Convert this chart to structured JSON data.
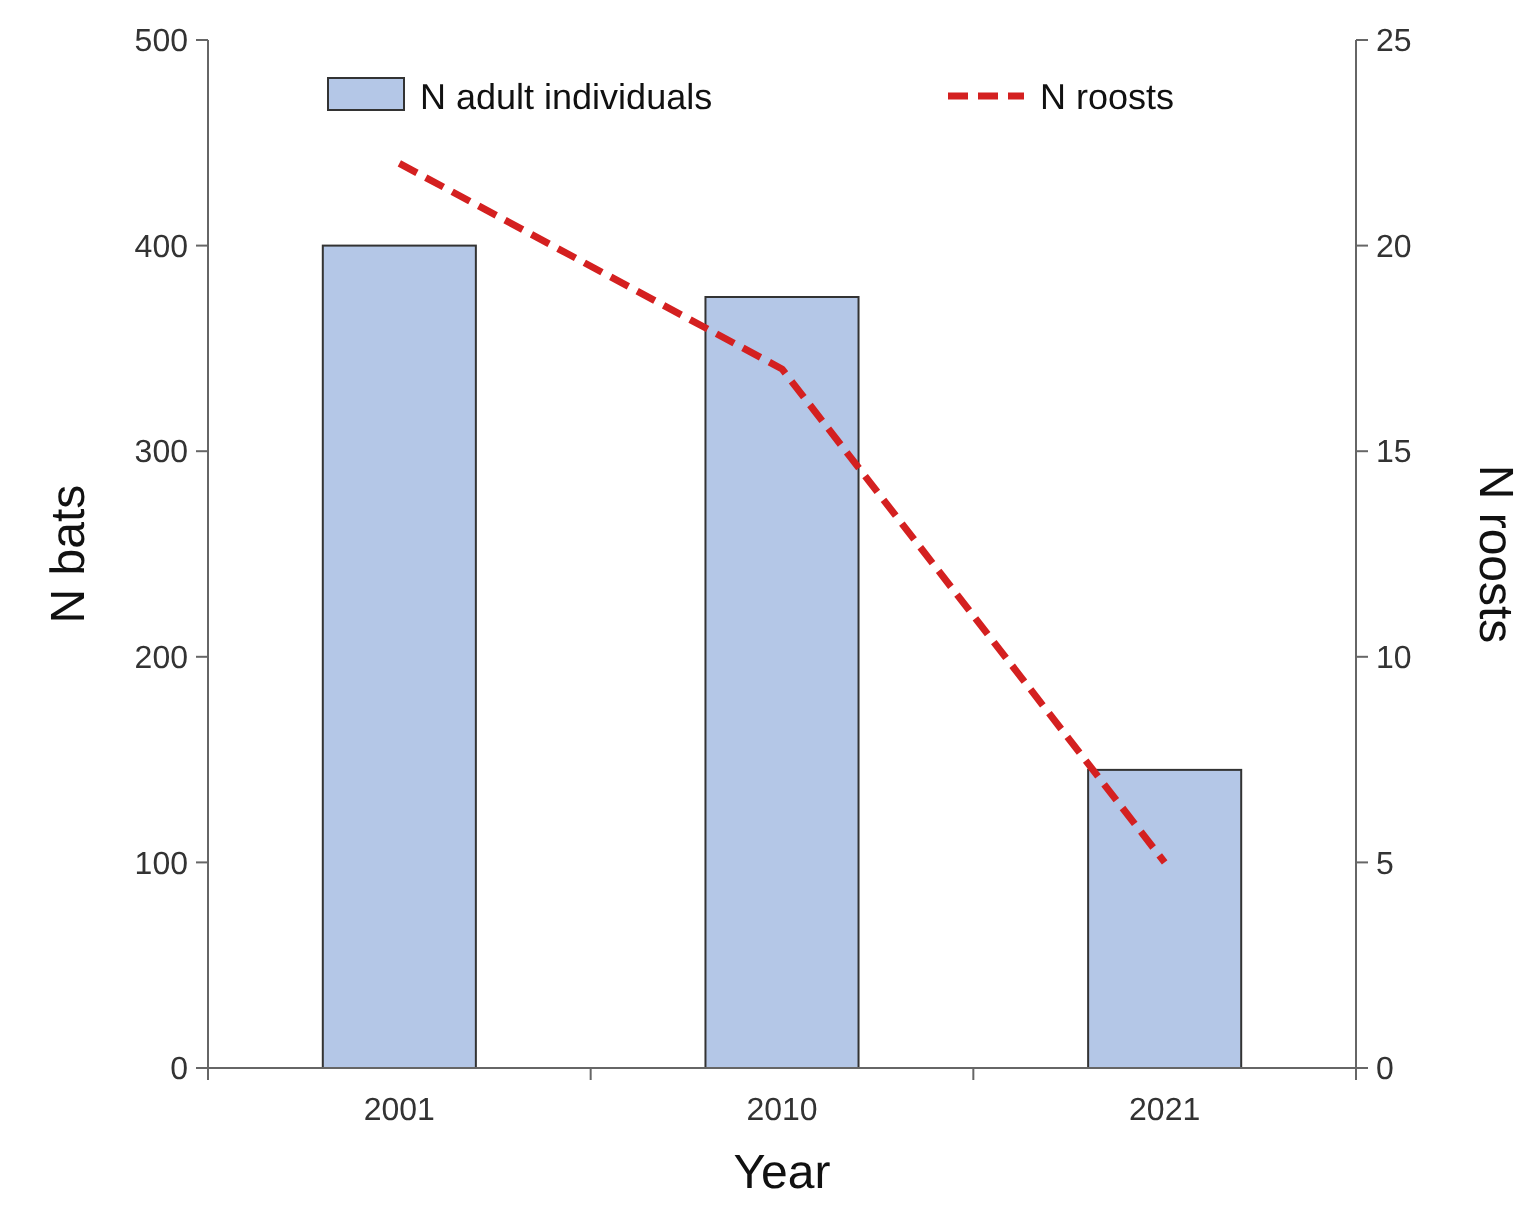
{
  "chart_data": {
    "type": "bar",
    "xlabel": "Year",
    "ylabel": "N bats",
    "y2label": "N roosts",
    "categories": [
      "2001",
      "2010",
      "2021"
    ],
    "series": [
      {
        "name": "N adult individuals",
        "color": "#b4c7e7",
        "values": [
          400,
          375,
          145
        ]
      },
      {
        "name": "N roosts",
        "type": "line",
        "axis": "y2",
        "color": "#d42020",
        "line_style": "dashed",
        "marker": "none",
        "values": [
          22,
          17,
          5
        ]
      }
    ],
    "ylim": [
      0,
      500
    ],
    "yticks": [
      0,
      100,
      200,
      300,
      400,
      500
    ],
    "y2lim": [
      0,
      25
    ],
    "y2ticks": [
      0,
      5,
      10,
      15,
      20,
      25
    ],
    "legend": "top",
    "grid": false
  }
}
